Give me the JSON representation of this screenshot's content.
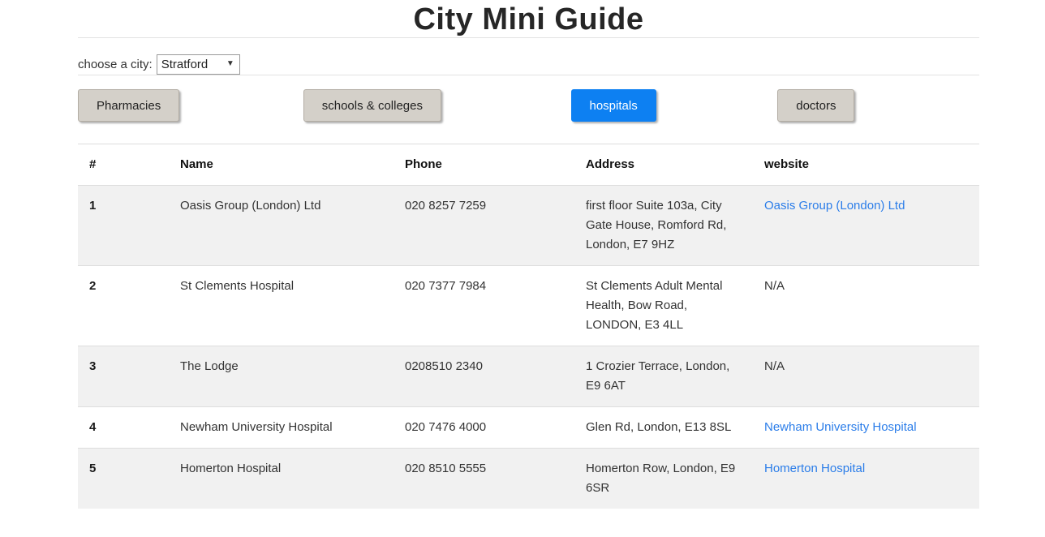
{
  "page": {
    "title": "City Mini Guide"
  },
  "city_selector": {
    "label": "choose a city:",
    "selected": "Stratford"
  },
  "category_buttons": [
    {
      "label": "Pharmacies",
      "active": false
    },
    {
      "label": "schools & colleges",
      "active": false
    },
    {
      "label": "hospitals",
      "active": true
    },
    {
      "label": "doctors",
      "active": false
    }
  ],
  "table": {
    "columns": [
      "#",
      "Name",
      "Phone",
      "Address",
      "website"
    ],
    "rows": [
      {
        "num": "1",
        "name": "Oasis Group (London) Ltd",
        "phone": "020 8257 7259",
        "address": "first floor Suite 103a, City Gate House, Romford Rd, London, E7 9HZ",
        "website": "Oasis Group (London) Ltd",
        "website_is_link": true
      },
      {
        "num": "2",
        "name": "St Clements Hospital",
        "phone": "020 7377 7984",
        "address": "St Clements Adult Mental Health, Bow Road, LONDON, E3 4LL",
        "website": "N/A",
        "website_is_link": false
      },
      {
        "num": "3",
        "name": "The Lodge",
        "phone": "0208510 2340",
        "address": "1 Crozier Terrace, London, E9 6AT",
        "website": "N/A",
        "website_is_link": false
      },
      {
        "num": "4",
        "name": "Newham University Hospital",
        "phone": "020 7476 4000",
        "address": "Glen Rd, London, E13 8SL",
        "website": "Newham University Hospital",
        "website_is_link": true
      },
      {
        "num": "5",
        "name": "Homerton Hospital",
        "phone": "020 8510 5555",
        "address": "Homerton Row, London, E9 6SR",
        "website": "Homerton Hospital",
        "website_is_link": true
      }
    ]
  },
  "colors": {
    "active_button": "#0d80f2",
    "inactive_button": "#d4d0c9",
    "link": "#2b7de9",
    "stripe_row": "#f1f1f1",
    "border": "#dddddd"
  }
}
